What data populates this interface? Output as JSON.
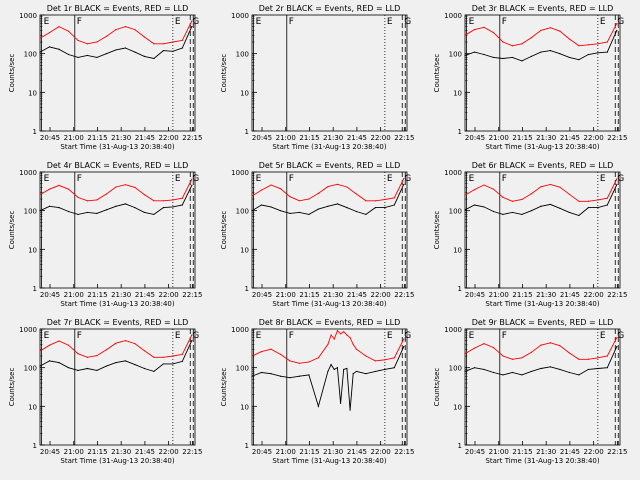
{
  "page": {
    "background": "#f0f0f0",
    "axis_color": "#000000",
    "events_color": "#000000",
    "lld_color": "#ff0000"
  },
  "shared": {
    "ylabel": "Counts/sec",
    "xlabel": "Start Time (31-Aug-13 20:38:40)",
    "xticks": [
      "20:45",
      "21:00",
      "21:15",
      "21:30",
      "21:45",
      "22:00",
      "22:15"
    ],
    "yticks": [
      "1",
      "10",
      "100",
      "1000"
    ],
    "marker_labels": [
      "E",
      "F",
      "E",
      "G"
    ]
  },
  "chart_data": [
    {
      "type": "line",
      "title": "Det 1r BLACK = Events, RED = LLD",
      "yscale": "log",
      "ylim": [
        1,
        1000
      ],
      "x_minutes_after_start": [
        0,
        6,
        12,
        18,
        24,
        30,
        36,
        42,
        48,
        54,
        60,
        66,
        72,
        78,
        84,
        90,
        96
      ],
      "series": [
        {
          "values": [
            110,
            150,
            130,
            95,
            80,
            90,
            80,
            100,
            125,
            140,
            110,
            85,
            75,
            120,
            115,
            140,
            500
          ]
        },
        {
          "values": [
            250,
            350,
            500,
            380,
            220,
            180,
            200,
            280,
            420,
            500,
            420,
            270,
            180,
            180,
            200,
            220,
            700
          ]
        }
      ],
      "markers": [
        {
          "label": "E",
          "x": 1
        },
        {
          "label": "F",
          "x": 22
        },
        {
          "label": "E",
          "x": 84
        },
        {
          "label": "G",
          "x": 95
        }
      ]
    },
    {
      "type": "line",
      "title": "Det 2r BLACK = Events, RED = LLD",
      "yscale": "log",
      "ylim": [
        1,
        1000
      ],
      "x_minutes_after_start": [],
      "series": [],
      "markers": [
        {
          "label": "E",
          "x": 1
        },
        {
          "label": "F",
          "x": 22
        },
        {
          "label": "E",
          "x": 84
        },
        {
          "label": "G",
          "x": 95
        }
      ]
    },
    {
      "type": "line",
      "title": "Det 3r BLACK = Events, RED = LLD",
      "yscale": "log",
      "ylim": [
        1,
        1000
      ],
      "x_minutes_after_start": [
        0,
        6,
        12,
        18,
        24,
        30,
        36,
        42,
        48,
        54,
        60,
        66,
        72,
        78,
        84,
        90,
        96
      ],
      "series": [
        {
          "values": [
            90,
            110,
            95,
            80,
            75,
            80,
            65,
            85,
            110,
            120,
            100,
            80,
            70,
            95,
            105,
            110,
            400
          ]
        },
        {
          "values": [
            300,
            420,
            480,
            350,
            200,
            160,
            180,
            260,
            400,
            470,
            380,
            240,
            160,
            170,
            180,
            200,
            600
          ]
        }
      ],
      "markers": [
        {
          "label": "E",
          "x": 1
        },
        {
          "label": "F",
          "x": 22
        },
        {
          "label": "E",
          "x": 84
        },
        {
          "label": "G",
          "x": 95
        }
      ]
    },
    {
      "type": "line",
      "title": "Det 4r BLACK = Events, RED = LLD",
      "yscale": "log",
      "ylim": [
        1,
        1000
      ],
      "x_minutes_after_start": [
        0,
        6,
        12,
        18,
        24,
        30,
        36,
        42,
        48,
        54,
        60,
        66,
        72,
        78,
        84,
        90,
        96
      ],
      "series": [
        {
          "values": [
            100,
            130,
            120,
            95,
            80,
            90,
            85,
            105,
            130,
            150,
            120,
            90,
            80,
            120,
            125,
            140,
            450
          ]
        },
        {
          "values": [
            260,
            360,
            450,
            360,
            220,
            180,
            190,
            270,
            410,
            470,
            400,
            260,
            180,
            180,
            190,
            210,
            650
          ]
        }
      ],
      "markers": [
        {
          "label": "E",
          "x": 1
        },
        {
          "label": "F",
          "x": 22
        },
        {
          "label": "E",
          "x": 84
        },
        {
          "label": "G",
          "x": 95
        }
      ]
    },
    {
      "type": "line",
      "title": "Det 5r BLACK = Events, RED = LLD",
      "yscale": "log",
      "ylim": [
        1,
        1000
      ],
      "x_minutes_after_start": [
        0,
        6,
        12,
        18,
        24,
        30,
        36,
        42,
        48,
        54,
        60,
        66,
        72,
        78,
        84,
        90,
        96
      ],
      "series": [
        {
          "values": [
            100,
            140,
            125,
            100,
            85,
            90,
            80,
            110,
            130,
            150,
            120,
            95,
            80,
            120,
            120,
            140,
            480
          ]
        },
        {
          "values": [
            240,
            340,
            460,
            370,
            230,
            180,
            200,
            280,
            420,
            480,
            410,
            270,
            180,
            180,
            195,
            215,
            680
          ]
        }
      ],
      "markers": [
        {
          "label": "E",
          "x": 1
        },
        {
          "label": "F",
          "x": 22
        },
        {
          "label": "E",
          "x": 84
        },
        {
          "label": "G",
          "x": 95
        }
      ]
    },
    {
      "type": "line",
      "title": "Det 6r BLACK = Events, RED = LLD",
      "yscale": "log",
      "ylim": [
        1,
        1000
      ],
      "x_minutes_after_start": [
        0,
        6,
        12,
        18,
        24,
        30,
        36,
        42,
        48,
        54,
        60,
        66,
        72,
        78,
        84,
        90,
        96
      ],
      "series": [
        {
          "values": [
            105,
            140,
            125,
            95,
            80,
            90,
            80,
            100,
            130,
            145,
            115,
            90,
            75,
            120,
            120,
            140,
            470
          ]
        },
        {
          "values": [
            250,
            350,
            460,
            360,
            220,
            175,
            195,
            275,
            415,
            475,
            405,
            265,
            175,
            175,
            190,
            210,
            660
          ]
        }
      ],
      "markers": [
        {
          "label": "E",
          "x": 1
        },
        {
          "label": "F",
          "x": 22
        },
        {
          "label": "E",
          "x": 84
        },
        {
          "label": "G",
          "x": 95
        }
      ]
    },
    {
      "type": "line",
      "title": "Det 7r BLACK = Events, RED = LLD",
      "yscale": "log",
      "ylim": [
        1,
        1000
      ],
      "x_minutes_after_start": [
        0,
        6,
        12,
        18,
        24,
        30,
        36,
        42,
        48,
        54,
        60,
        66,
        72,
        78,
        84,
        90,
        96
      ],
      "series": [
        {
          "values": [
            110,
            150,
            135,
            100,
            85,
            95,
            85,
            110,
            135,
            150,
            120,
            95,
            80,
            125,
            125,
            145,
            500
          ]
        },
        {
          "values": [
            270,
            380,
            490,
            380,
            230,
            185,
            205,
            290,
            430,
            500,
            420,
            275,
            185,
            185,
            200,
            220,
            700
          ]
        }
      ],
      "markers": [
        {
          "label": "E",
          "x": 1
        },
        {
          "label": "F",
          "x": 22
        },
        {
          "label": "E",
          "x": 84
        },
        {
          "label": "G",
          "x": 95
        }
      ]
    },
    {
      "type": "line",
      "title": "Det 8r BLACK = Events, RED = LLD",
      "yscale": "log",
      "ylim": [
        1,
        1000
      ],
      "x_minutes_after_start": [
        0,
        6,
        12,
        18,
        24,
        30,
        36,
        42,
        48,
        50,
        52,
        54,
        56,
        58,
        60,
        62,
        64,
        66,
        72,
        78,
        84,
        90,
        96
      ],
      "series": [
        {
          "values": [
            60,
            75,
            70,
            60,
            55,
            60,
            65,
            10,
            80,
            120,
            90,
            100,
            12,
            90,
            95,
            8,
            70,
            80,
            70,
            80,
            90,
            100,
            350
          ]
        },
        {
          "values": [
            200,
            260,
            300,
            220,
            150,
            130,
            140,
            180,
            400,
            700,
            550,
            900,
            750,
            850,
            700,
            600,
            400,
            300,
            200,
            150,
            160,
            180,
            550
          ]
        }
      ],
      "markers": [
        {
          "label": "E",
          "x": 1
        },
        {
          "label": "F",
          "x": 22
        },
        {
          "label": "E",
          "x": 84
        },
        {
          "label": "G",
          "x": 95
        }
      ]
    },
    {
      "type": "line",
      "title": "Det 9r BLACK = Events, RED = LLD",
      "yscale": "log",
      "ylim": [
        1,
        1000
      ],
      "x_minutes_after_start": [
        0,
        6,
        12,
        18,
        24,
        30,
        36,
        42,
        48,
        54,
        60,
        66,
        72,
        78,
        84,
        90,
        96
      ],
      "series": [
        {
          "values": [
            80,
            100,
            90,
            75,
            65,
            75,
            65,
            80,
            95,
            105,
            90,
            75,
            65,
            90,
            95,
            100,
            350
          ]
        },
        {
          "values": [
            230,
            320,
            420,
            330,
            200,
            165,
            180,
            250,
            380,
            440,
            370,
            240,
            165,
            165,
            180,
            200,
            600
          ]
        }
      ],
      "markers": [
        {
          "label": "E",
          "x": 1
        },
        {
          "label": "F",
          "x": 22
        },
        {
          "label": "E",
          "x": 84
        },
        {
          "label": "G",
          "x": 95
        }
      ]
    }
  ]
}
